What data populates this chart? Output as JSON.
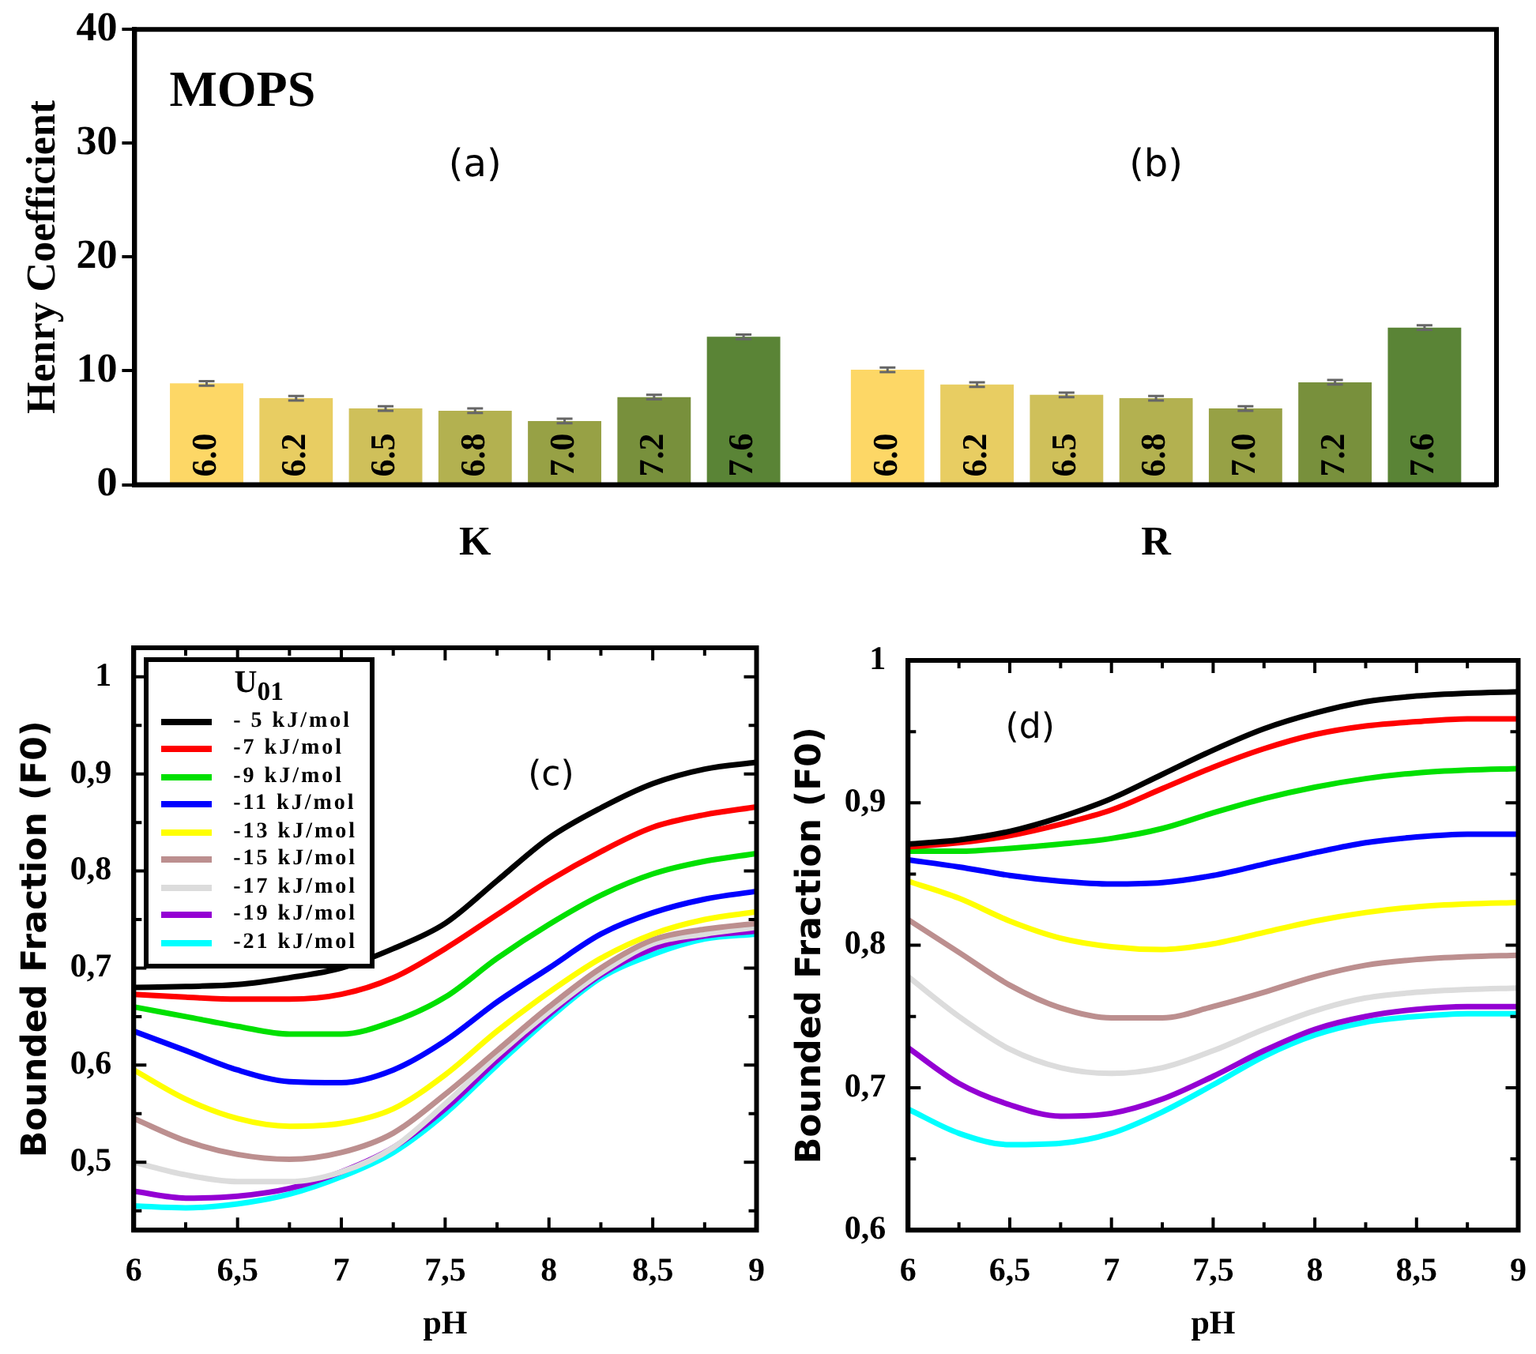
{
  "chart_data": [
    {
      "type": "bar",
      "ylabel": "Henry Coefficient",
      "categories": [
        "K",
        "R"
      ],
      "ylim": [
        0,
        40
      ],
      "yticks": [
        0,
        10,
        20,
        30,
        40
      ],
      "legend": false,
      "annotations": [
        "MOPS",
        "(a)",
        "(b)"
      ],
      "series": [
        {
          "name": "6.0",
          "color": "#fdd766",
          "values": [
            8.9,
            10.1
          ],
          "errors": [
            0.2,
            0.2
          ]
        },
        {
          "name": "6.2",
          "color": "#e8cd62",
          "values": [
            7.6,
            8.8
          ],
          "errors": [
            0.2,
            0.2
          ]
        },
        {
          "name": "6.5",
          "color": "#cfc05a",
          "values": [
            6.7,
            7.9
          ],
          "errors": [
            0.2,
            0.2
          ]
        },
        {
          "name": "6.8",
          "color": "#b3b150",
          "values": [
            6.5,
            7.6
          ],
          "errors": [
            0.2,
            0.2
          ]
        },
        {
          "name": "7.0",
          "color": "#97a145",
          "values": [
            5.6,
            6.7
          ],
          "errors": [
            0.2,
            0.2
          ]
        },
        {
          "name": "7.2",
          "color": "#78903c",
          "values": [
            7.7,
            9.0
          ],
          "errors": [
            0.2,
            0.2
          ]
        },
        {
          "name": "7.6",
          "color": "#5a8436",
          "values": [
            13.0,
            13.8
          ],
          "errors": [
            0.2,
            0.2
          ]
        }
      ]
    },
    {
      "type": "line",
      "xlabel": "pH",
      "ylabel": "Bounded Fraction (F0)",
      "legend": "top left",
      "legend_title": "U$_{01}$",
      "annotations": [
        "(c)"
      ],
      "x": [
        6,
        6.25,
        6.5,
        6.75,
        7,
        7.25,
        7.5,
        7.75,
        8,
        8.25,
        8.5,
        8.75,
        9
      ],
      "xlim": [
        6,
        9
      ],
      "xticks": [
        6,
        {
          "value": 6.25,
          "label": null
        },
        {
          "value": 6.5,
          "label": "6,5"
        },
        {
          "value": 6.75,
          "label": null
        },
        7,
        {
          "value": 7.25,
          "label": null
        },
        {
          "value": 7.5,
          "label": "7,5"
        },
        {
          "value": 7.75,
          "label": null
        },
        8,
        {
          "value": 8.25,
          "label": null
        },
        {
          "value": 8.5,
          "label": "8,5"
        },
        {
          "value": 8.75,
          "label": null
        },
        9
      ],
      "ylim": [
        0.43,
        1.03
      ],
      "yticks": [
        {
          "value": 0.45,
          "label": null
        },
        {
          "value": 0.5,
          "label": "0,5"
        },
        {
          "value": 0.55,
          "label": null
        },
        {
          "value": 0.6,
          "label": "0,6"
        },
        {
          "value": 0.65,
          "label": null
        },
        {
          "value": 0.7,
          "label": "0,7"
        },
        {
          "value": 0.75,
          "label": null
        },
        {
          "value": 0.8,
          "label": "0,8"
        },
        {
          "value": 0.85,
          "label": null
        },
        {
          "value": 0.9,
          "label": "0,9"
        },
        {
          "value": 0.95,
          "label": null
        },
        1
      ],
      "series": [
        {
          "name": "- 5 kJ/mol",
          "color": "#000000",
          "values": [
            0.68,
            0.681,
            0.683,
            0.69,
            0.7,
            0.72,
            0.746,
            0.79,
            0.834,
            0.865,
            0.89,
            0.905,
            0.912
          ]
        },
        {
          "name": "-7 kJ/mol",
          "color": "#ff0000",
          "values": [
            0.673,
            0.67,
            0.668,
            0.668,
            0.673,
            0.69,
            0.72,
            0.755,
            0.79,
            0.82,
            0.845,
            0.858,
            0.866
          ]
        },
        {
          "name": "-9 kJ/mol",
          "color": "#00e000",
          "values": [
            0.66,
            0.65,
            0.64,
            0.632,
            0.632,
            0.645,
            0.67,
            0.71,
            0.745,
            0.775,
            0.797,
            0.81,
            0.818
          ]
        },
        {
          "name": "-11 kJ/mol",
          "color": "#0000ff",
          "values": [
            0.635,
            0.615,
            0.595,
            0.583,
            0.582,
            0.595,
            0.625,
            0.665,
            0.7,
            0.735,
            0.757,
            0.771,
            0.779
          ]
        },
        {
          "name": "-13 kJ/mol",
          "color": "#ffff00",
          "values": [
            0.595,
            0.565,
            0.545,
            0.537,
            0.54,
            0.555,
            0.59,
            0.635,
            0.675,
            0.71,
            0.735,
            0.75,
            0.758
          ]
        },
        {
          "name": "-15 kJ/mol",
          "color": "#bc8f8f",
          "values": [
            0.545,
            0.522,
            0.508,
            0.503,
            0.51,
            0.53,
            0.57,
            0.615,
            0.66,
            0.7,
            0.729,
            0.74,
            0.746
          ]
        },
        {
          "name": "-17 kJ/mol",
          "color": "#dcdcdc",
          "values": [
            0.5,
            0.487,
            0.48,
            0.48,
            0.49,
            0.515,
            0.56,
            0.61,
            0.655,
            0.695,
            0.725,
            0.735,
            0.742
          ]
        },
        {
          "name": "-19 kJ/mol",
          "color": "#9400d3",
          "values": [
            0.47,
            0.463,
            0.465,
            0.473,
            0.49,
            0.515,
            0.555,
            0.605,
            0.652,
            0.693,
            0.72,
            0.733,
            0.738
          ]
        },
        {
          "name": "-21 kJ/mol",
          "color": "#00ffff",
          "values": [
            0.455,
            0.453,
            0.457,
            0.467,
            0.485,
            0.51,
            0.55,
            0.6,
            0.648,
            0.69,
            0.714,
            0.73,
            0.735
          ]
        }
      ]
    },
    {
      "type": "line",
      "xlabel": "pH",
      "ylabel": "Bounded Fraction (F0)",
      "annotations": [
        "(d)"
      ],
      "x": [
        6,
        6.25,
        6.5,
        6.75,
        7,
        7.25,
        7.5,
        7.75,
        8,
        8.25,
        8.5,
        8.75,
        9
      ],
      "xlim": [
        6,
        9
      ],
      "xticks": [
        6,
        {
          "value": 6.25,
          "label": null
        },
        {
          "value": 6.5,
          "label": "6,5"
        },
        {
          "value": 6.75,
          "label": null
        },
        7,
        {
          "value": 7.25,
          "label": null
        },
        {
          "value": 7.5,
          "label": "7,5"
        },
        {
          "value": 7.75,
          "label": null
        },
        8,
        {
          "value": 8.25,
          "label": null
        },
        {
          "value": 8.5,
          "label": "8,5"
        },
        {
          "value": 8.75,
          "label": null
        },
        9
      ],
      "ylim": [
        0.6,
        1
      ],
      "yticks": [
        {
          "value": 0.6,
          "label": "0,6"
        },
        {
          "value": 0.65,
          "label": null
        },
        {
          "value": 0.7,
          "label": "0,7"
        },
        {
          "value": 0.75,
          "label": null
        },
        {
          "value": 0.8,
          "label": "0,8"
        },
        {
          "value": 0.85,
          "label": null
        },
        {
          "value": 0.9,
          "label": "0,9"
        },
        {
          "value": 0.95,
          "label": null
        },
        1
      ],
      "series": [
        {
          "color": "#000000",
          "values": [
            0.871,
            0.874,
            0.88,
            0.89,
            0.903,
            0.92,
            0.937,
            0.952,
            0.963,
            0.971,
            0.975,
            0.977,
            0.978
          ]
        },
        {
          "color": "#ff0000",
          "values": [
            0.869,
            0.872,
            0.877,
            0.885,
            0.895,
            0.91,
            0.925,
            0.938,
            0.948,
            0.954,
            0.957,
            0.959,
            0.959
          ]
        },
        {
          "color": "#00e000",
          "values": [
            0.866,
            0.866,
            0.868,
            0.871,
            0.875,
            0.882,
            0.893,
            0.903,
            0.911,
            0.917,
            0.921,
            0.923,
            0.924
          ]
        },
        {
          "color": "#0000ff",
          "values": [
            0.86,
            0.855,
            0.849,
            0.845,
            0.843,
            0.844,
            0.849,
            0.857,
            0.865,
            0.872,
            0.876,
            0.878,
            0.878
          ]
        },
        {
          "color": "#ffff00",
          "values": [
            0.845,
            0.833,
            0.817,
            0.805,
            0.799,
            0.797,
            0.801,
            0.809,
            0.817,
            0.823,
            0.827,
            0.829,
            0.83
          ]
        },
        {
          "color": "#bc8f8f",
          "values": [
            0.818,
            0.795,
            0.772,
            0.756,
            0.749,
            0.749,
            0.757,
            0.767,
            0.778,
            0.786,
            0.79,
            0.792,
            0.793
          ]
        },
        {
          "color": "#dcdcdc",
          "values": [
            0.778,
            0.75,
            0.727,
            0.714,
            0.71,
            0.714,
            0.726,
            0.741,
            0.754,
            0.763,
            0.767,
            0.769,
            0.77
          ]
        },
        {
          "color": "#9400d3",
          "values": [
            0.728,
            0.703,
            0.688,
            0.68,
            0.682,
            0.692,
            0.708,
            0.726,
            0.741,
            0.75,
            0.755,
            0.757,
            0.757
          ]
        },
        {
          "color": "#00ffff",
          "values": [
            0.685,
            0.668,
            0.66,
            0.661,
            0.668,
            0.683,
            0.702,
            0.722,
            0.737,
            0.746,
            0.75,
            0.752,
            0.752
          ]
        }
      ]
    }
  ]
}
